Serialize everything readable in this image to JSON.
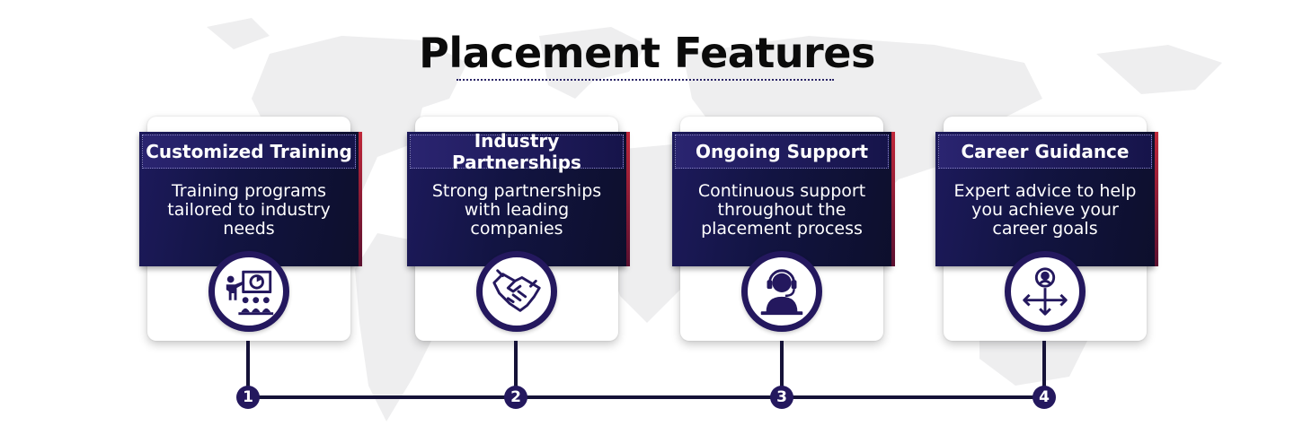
{
  "title": "Placement Features",
  "colors": {
    "navy": "#121442",
    "accent_red": "#c0283a",
    "icon_ring": "#24185e",
    "line": "#151238"
  },
  "features": [
    {
      "number": "1",
      "heading": "Customized Training",
      "description": "Training programs tailored to industry needs",
      "icon": "training-presentation-icon"
    },
    {
      "number": "2",
      "heading": "Industry Partnerships",
      "description": "Strong partnerships with leading companies",
      "icon": "handshake-icon"
    },
    {
      "number": "3",
      "heading": "Ongoing Support",
      "description": "Continuous support throughout the placement process",
      "icon": "support-headset-icon"
    },
    {
      "number": "4",
      "heading": "Career Guidance",
      "description": "Expert advice to help you achieve your career goals",
      "icon": "career-direction-icon"
    }
  ]
}
